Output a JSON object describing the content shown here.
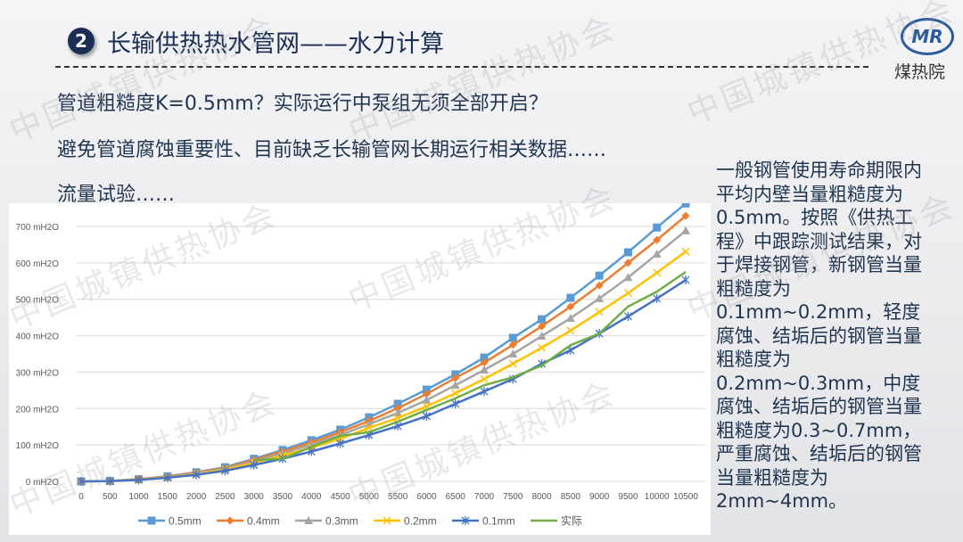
{
  "header": {
    "badge": "2",
    "title": "长输供热热水管网——水力计算",
    "logo_mark": "MR",
    "logo_text": "煤热院"
  },
  "watermark": "中国城镇供热协会",
  "bullets": [
    "管道粗糙度K=0.5mm？实际运行中泵组无须全部开启？",
    "避免管道腐蚀重要性、目前缺乏长输管网长期运行相关数据……",
    "流量试验……"
  ],
  "side_text": [
    "一般钢管使用寿命期限内",
    "平均内壁当量粗糙度为",
    "0.5mm。按照《供热工",
    "程》中跟踪测试结果，对",
    "于焊接钢管，新钢管当量",
    "粗糙度为",
    "0.1mm~0.2mm，轻度",
    "腐蚀、结垢后的钢管当量",
    "粗糙度为",
    "0.2mm~0.3mm，中度",
    "腐蚀、结垢后的钢管当量",
    "粗糙度为0.3~0.7mm，",
    "严重腐蚀、结垢后的钢管",
    "当量粗糙度为",
    "2mm~4mm。"
  ],
  "chart_data": {
    "type": "line",
    "title": "",
    "xlabel": "",
    "ylabel": "",
    "x": [
      0,
      500,
      1000,
      1500,
      2000,
      2500,
      3000,
      3500,
      4000,
      4500,
      5000,
      5500,
      6000,
      6500,
      7000,
      7500,
      8000,
      8500,
      9000,
      9500,
      10000,
      10500
    ],
    "y_ticks": [
      "0 mH2O",
      "100 mH2O",
      "200 mH2O",
      "300 mH2O",
      "400 mH2O",
      "500 mH2O",
      "600 mH2O",
      "700 mH2O"
    ],
    "ylim": [
      0,
      700
    ],
    "grid": true,
    "legend": "bottom",
    "series": [
      {
        "name": "0.5mm",
        "color": "#5b9bd5",
        "marker": "square",
        "values": [
          0,
          1,
          6,
          14,
          25,
          39,
          62,
          86,
          113,
          142,
          176,
          213,
          252,
          294,
          340,
          394,
          445,
          504,
          565,
          629,
          697,
          763
        ]
      },
      {
        "name": "0.4mm",
        "color": "#ed7d31",
        "marker": "diamond",
        "values": [
          0,
          1,
          6,
          13,
          24,
          37,
          59,
          82,
          107,
          135,
          166,
          201,
          240,
          284,
          326,
          375,
          426,
          480,
          538,
          600,
          663,
          729
        ]
      },
      {
        "name": "0.3mm",
        "color": "#a5a5a5",
        "marker": "triangle",
        "values": [
          0,
          1,
          5,
          12,
          22,
          35,
          55,
          77,
          101,
          127,
          157,
          188,
          223,
          264,
          306,
          350,
          399,
          448,
          502,
          560,
          624,
          688
        ]
      },
      {
        "name": "0.2mm",
        "color": "#ffc000",
        "marker": "x",
        "values": [
          0,
          1,
          5,
          11,
          20,
          32,
          51,
          71,
          93,
          117,
          147,
          174,
          206,
          242,
          281,
          323,
          367,
          414,
          465,
          517,
          573,
          631
        ]
      },
      {
        "name": "0.1mm",
        "color": "#4472c4",
        "marker": "star",
        "values": [
          0,
          1,
          4,
          10,
          18,
          29,
          45,
          62,
          82,
          104,
          127,
          152,
          179,
          213,
          247,
          281,
          323,
          360,
          406,
          453,
          502,
          553
        ]
      },
      {
        "name": "实际",
        "color": "#70ad47",
        "marker": "none",
        "values": [
          null,
          null,
          null,
          null,
          null,
          null,
          58,
          62,
          95,
          125,
          135,
          164,
          196,
          228,
          264,
          286,
          318,
          374,
          406,
          480,
          521,
          575
        ]
      }
    ]
  }
}
